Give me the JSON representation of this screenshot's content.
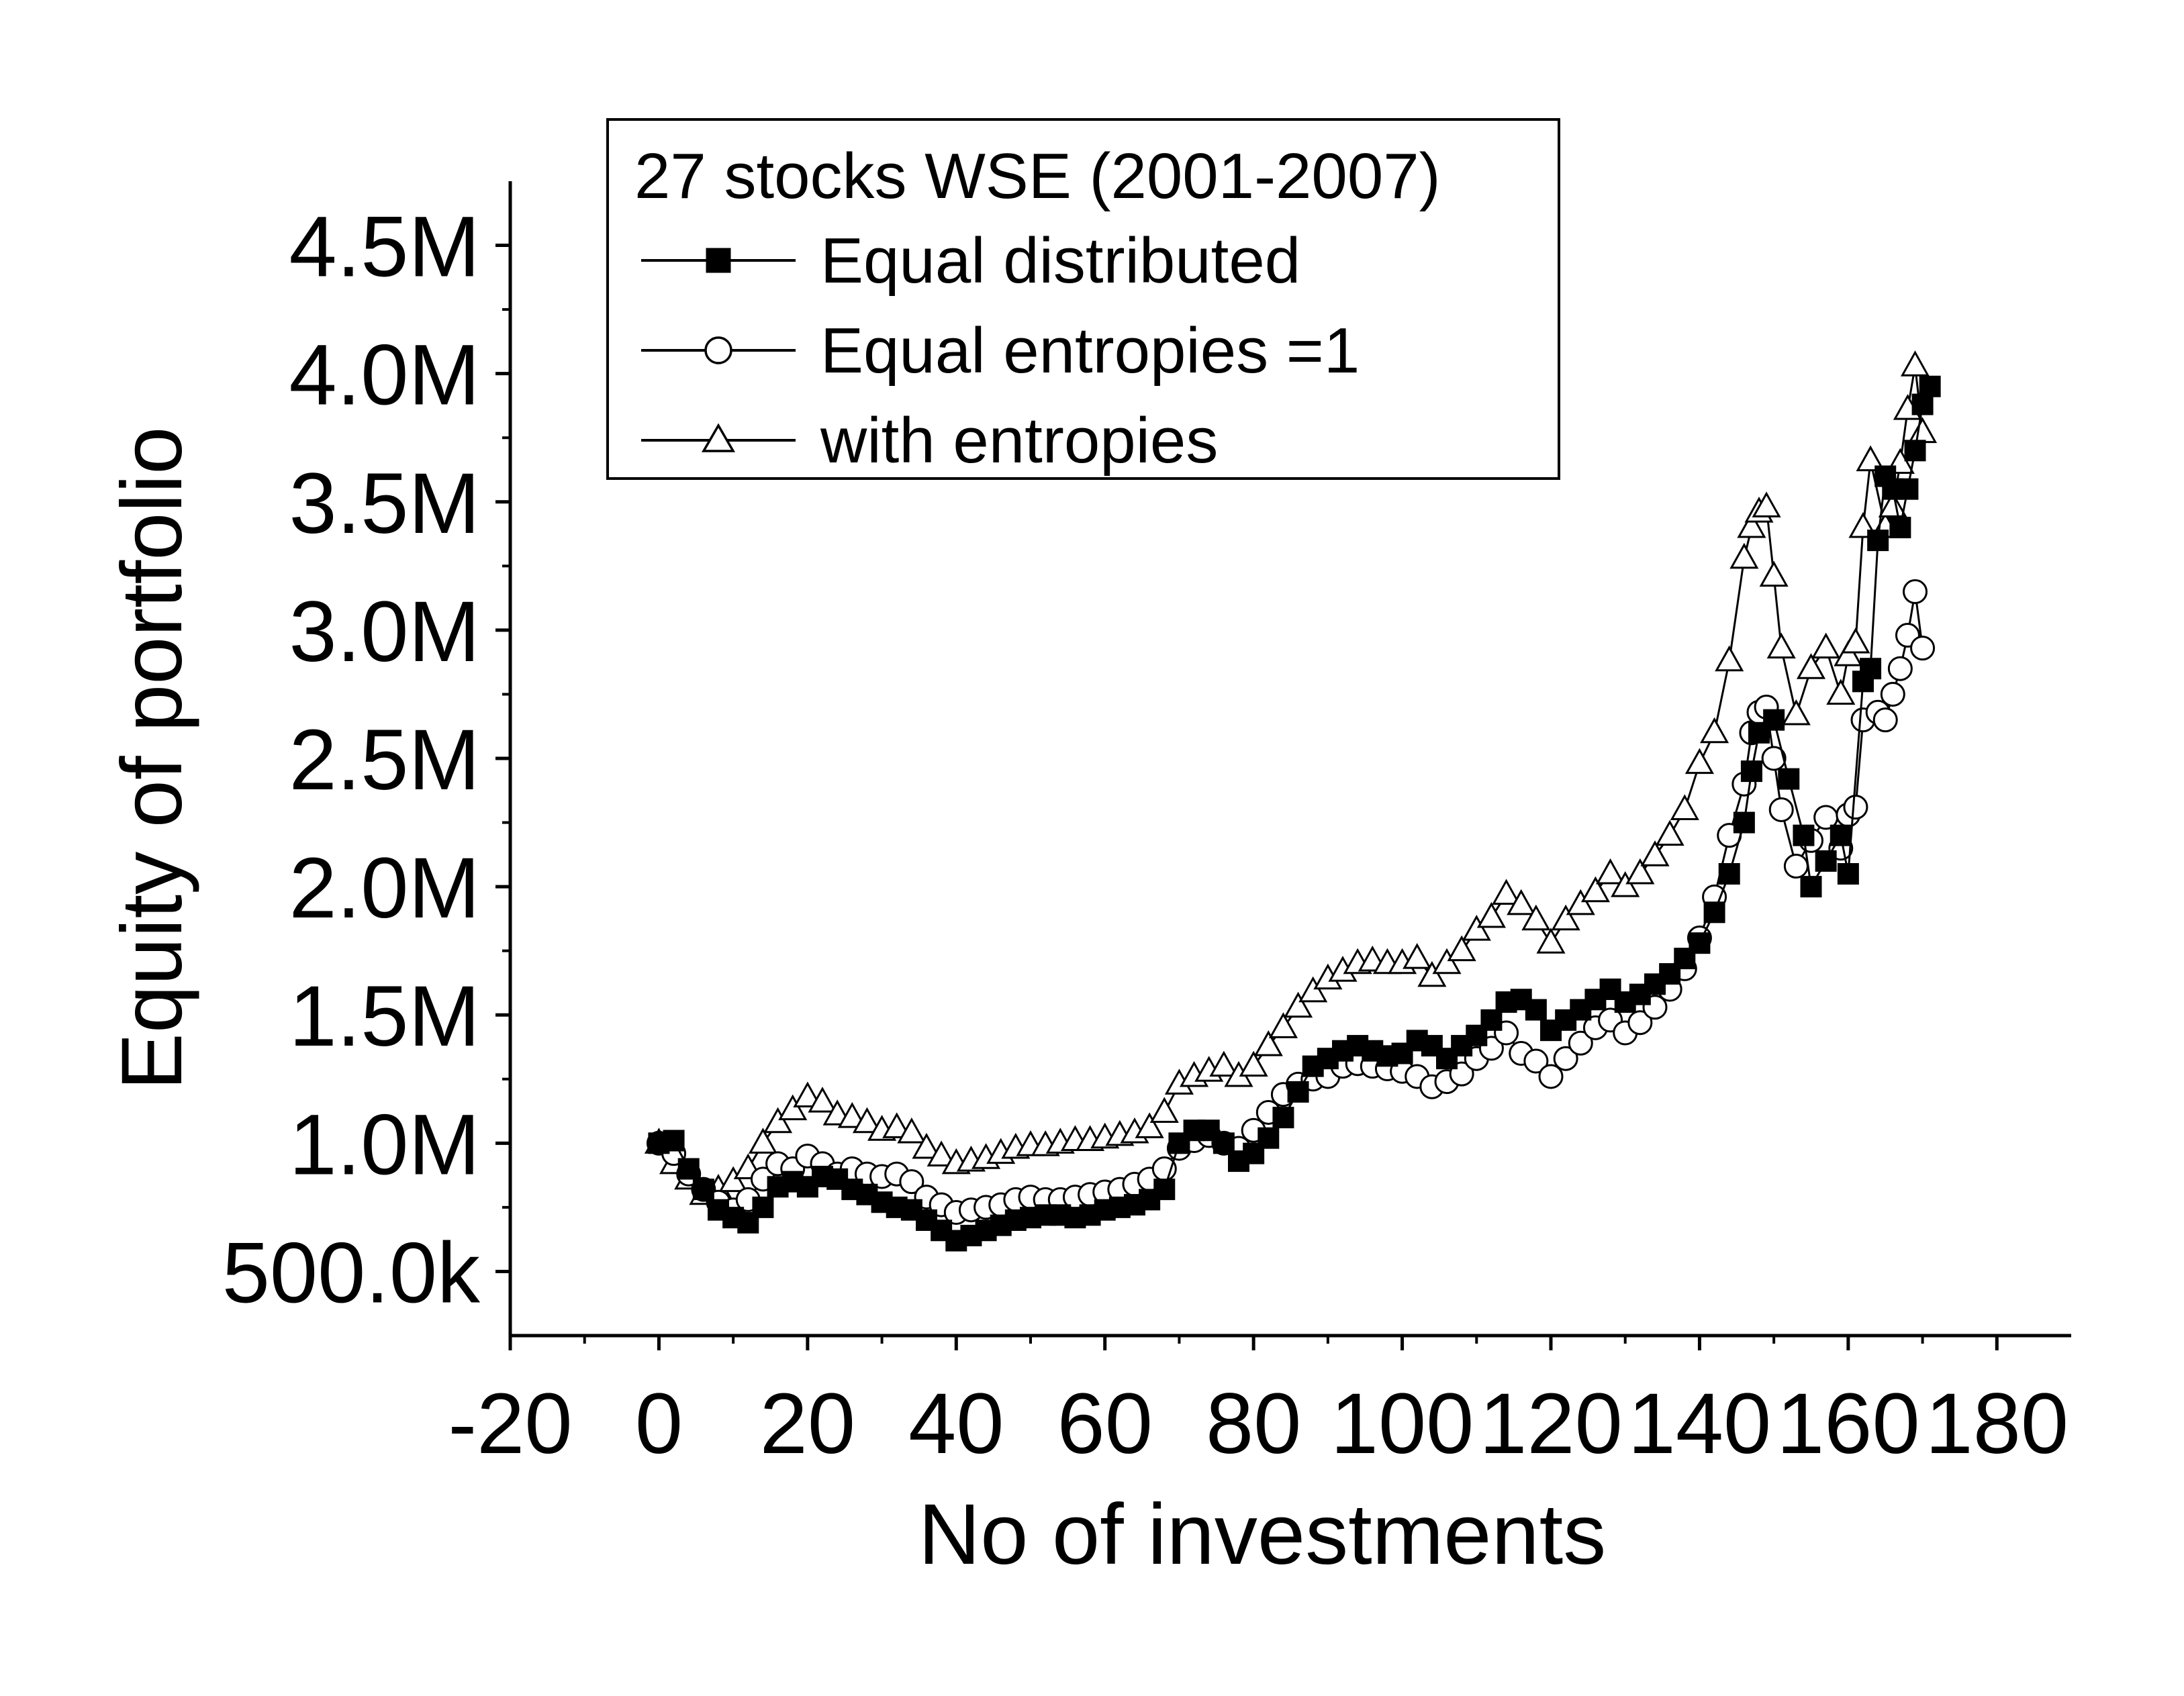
{
  "chart_data": {
    "type": "line",
    "xlabel": "No of investments",
    "ylabel": "Equity of portfolio",
    "xlim": [
      -20,
      190
    ],
    "ylim": [
      250000,
      4750000
    ],
    "x_ticks": [
      -20,
      0,
      20,
      40,
      60,
      80,
      100,
      120,
      140,
      160,
      180
    ],
    "x_tick_labels": [
      "-20",
      "0",
      "20",
      "40",
      "60",
      "80",
      "100",
      "120",
      "140",
      "160",
      "180"
    ],
    "y_ticks": [
      500000,
      1000000,
      1500000,
      2000000,
      2500000,
      3000000,
      3500000,
      4000000,
      4500000
    ],
    "y_tick_labels": [
      "500.0k",
      "1.0M",
      "1.5M",
      "2.0M",
      "2.5M",
      "3.0M",
      "3.5M",
      "4.0M",
      "4.5M"
    ],
    "grid": false,
    "legend": {
      "placement": "top-left",
      "title": "27 stocks WSE (2001-2007)"
    },
    "series": [
      {
        "name": "Equal distributed",
        "marker": "filled-square",
        "color": "#000000",
        "points": [
          [
            0,
            1000000
          ],
          [
            2,
            1010000
          ],
          [
            4,
            900000
          ],
          [
            6,
            820000
          ],
          [
            8,
            740000
          ],
          [
            10,
            710000
          ],
          [
            12,
            690000
          ],
          [
            14,
            750000
          ],
          [
            16,
            830000
          ],
          [
            18,
            850000
          ],
          [
            20,
            830000
          ],
          [
            22,
            870000
          ],
          [
            24,
            860000
          ],
          [
            26,
            820000
          ],
          [
            28,
            800000
          ],
          [
            30,
            770000
          ],
          [
            32,
            750000
          ],
          [
            34,
            740000
          ],
          [
            36,
            700000
          ],
          [
            38,
            660000
          ],
          [
            40,
            620000
          ],
          [
            42,
            640000
          ],
          [
            44,
            660000
          ],
          [
            46,
            680000
          ],
          [
            48,
            700000
          ],
          [
            50,
            710000
          ],
          [
            52,
            720000
          ],
          [
            54,
            720000
          ],
          [
            56,
            710000
          ],
          [
            58,
            720000
          ],
          [
            60,
            740000
          ],
          [
            62,
            750000
          ],
          [
            64,
            760000
          ],
          [
            66,
            780000
          ],
          [
            68,
            820000
          ],
          [
            70,
            1000000
          ],
          [
            72,
            1050000
          ],
          [
            74,
            1050000
          ],
          [
            76,
            1000000
          ],
          [
            78,
            930000
          ],
          [
            80,
            960000
          ],
          [
            82,
            1020000
          ],
          [
            84,
            1100000
          ],
          [
            86,
            1200000
          ],
          [
            88,
            1300000
          ],
          [
            90,
            1330000
          ],
          [
            92,
            1360000
          ],
          [
            94,
            1380000
          ],
          [
            96,
            1360000
          ],
          [
            98,
            1340000
          ],
          [
            100,
            1350000
          ],
          [
            102,
            1400000
          ],
          [
            104,
            1380000
          ],
          [
            106,
            1330000
          ],
          [
            108,
            1380000
          ],
          [
            110,
            1420000
          ],
          [
            112,
            1480000
          ],
          [
            114,
            1550000
          ],
          [
            116,
            1560000
          ],
          [
            118,
            1520000
          ],
          [
            120,
            1440000
          ],
          [
            122,
            1480000
          ],
          [
            124,
            1520000
          ],
          [
            126,
            1560000
          ],
          [
            128,
            1600000
          ],
          [
            130,
            1550000
          ],
          [
            132,
            1580000
          ],
          [
            134,
            1620000
          ],
          [
            136,
            1660000
          ],
          [
            138,
            1720000
          ],
          [
            140,
            1780000
          ],
          [
            142,
            1900000
          ],
          [
            144,
            2050000
          ],
          [
            146,
            2250000
          ],
          [
            147,
            2450000
          ],
          [
            148,
            2600000
          ],
          [
            150,
            2650000
          ],
          [
            152,
            2420000
          ],
          [
            154,
            2200000
          ],
          [
            155,
            2000000
          ],
          [
            157,
            2100000
          ],
          [
            159,
            2200000
          ],
          [
            160,
            2050000
          ],
          [
            162,
            2800000
          ],
          [
            163,
            2850000
          ],
          [
            164,
            3350000
          ],
          [
            165,
            3600000
          ],
          [
            166,
            3550000
          ],
          [
            167,
            3400000
          ],
          [
            168,
            3550000
          ],
          [
            169,
            3700000
          ],
          [
            170,
            3880000
          ],
          [
            171,
            3950000
          ]
        ]
      },
      {
        "name": "Equal entropies =1",
        "marker": "open-circle",
        "color": "#000000",
        "points": [
          [
            0,
            1000000
          ],
          [
            2,
            960000
          ],
          [
            4,
            880000
          ],
          [
            6,
            820000
          ],
          [
            8,
            770000
          ],
          [
            10,
            740000
          ],
          [
            12,
            780000
          ],
          [
            14,
            860000
          ],
          [
            16,
            920000
          ],
          [
            18,
            900000
          ],
          [
            20,
            950000
          ],
          [
            22,
            920000
          ],
          [
            24,
            880000
          ],
          [
            26,
            900000
          ],
          [
            28,
            880000
          ],
          [
            30,
            870000
          ],
          [
            32,
            880000
          ],
          [
            34,
            850000
          ],
          [
            36,
            790000
          ],
          [
            38,
            760000
          ],
          [
            40,
            730000
          ],
          [
            42,
            740000
          ],
          [
            44,
            750000
          ],
          [
            46,
            760000
          ],
          [
            48,
            780000
          ],
          [
            50,
            790000
          ],
          [
            52,
            780000
          ],
          [
            54,
            780000
          ],
          [
            56,
            790000
          ],
          [
            58,
            800000
          ],
          [
            60,
            810000
          ],
          [
            62,
            820000
          ],
          [
            64,
            840000
          ],
          [
            66,
            860000
          ],
          [
            68,
            900000
          ],
          [
            70,
            980000
          ],
          [
            72,
            1010000
          ],
          [
            74,
            1030000
          ],
          [
            76,
            1000000
          ],
          [
            78,
            980000
          ],
          [
            80,
            1050000
          ],
          [
            82,
            1120000
          ],
          [
            84,
            1190000
          ],
          [
            86,
            1230000
          ],
          [
            88,
            1250000
          ],
          [
            90,
            1260000
          ],
          [
            92,
            1300000
          ],
          [
            94,
            1310000
          ],
          [
            96,
            1300000
          ],
          [
            98,
            1290000
          ],
          [
            100,
            1280000
          ],
          [
            102,
            1260000
          ],
          [
            104,
            1220000
          ],
          [
            106,
            1240000
          ],
          [
            108,
            1270000
          ],
          [
            110,
            1330000
          ],
          [
            112,
            1370000
          ],
          [
            114,
            1430000
          ],
          [
            116,
            1350000
          ],
          [
            118,
            1320000
          ],
          [
            120,
            1260000
          ],
          [
            122,
            1330000
          ],
          [
            124,
            1390000
          ],
          [
            126,
            1450000
          ],
          [
            128,
            1480000
          ],
          [
            130,
            1430000
          ],
          [
            132,
            1470000
          ],
          [
            134,
            1530000
          ],
          [
            136,
            1600000
          ],
          [
            138,
            1680000
          ],
          [
            140,
            1800000
          ],
          [
            142,
            1960000
          ],
          [
            144,
            2200000
          ],
          [
            146,
            2400000
          ],
          [
            147,
            2600000
          ],
          [
            148,
            2680000
          ],
          [
            149,
            2700000
          ],
          [
            150,
            2500000
          ],
          [
            151,
            2300000
          ],
          [
            153,
            2080000
          ],
          [
            155,
            2180000
          ],
          [
            157,
            2270000
          ],
          [
            159,
            2150000
          ],
          [
            160,
            2280000
          ],
          [
            161,
            2310000
          ],
          [
            162,
            2650000
          ],
          [
            164,
            2680000
          ],
          [
            165,
            2650000
          ],
          [
            166,
            2750000
          ],
          [
            167,
            2850000
          ],
          [
            168,
            2980000
          ],
          [
            169,
            3150000
          ],
          [
            170,
            2930000
          ]
        ]
      },
      {
        "name": "with entropies",
        "marker": "open-triangle",
        "color": "#000000",
        "points": [
          [
            0,
            1000000
          ],
          [
            2,
            920000
          ],
          [
            4,
            860000
          ],
          [
            6,
            800000
          ],
          [
            8,
            820000
          ],
          [
            10,
            850000
          ],
          [
            12,
            900000
          ],
          [
            14,
            1000000
          ],
          [
            16,
            1080000
          ],
          [
            18,
            1130000
          ],
          [
            20,
            1180000
          ],
          [
            22,
            1160000
          ],
          [
            24,
            1110000
          ],
          [
            26,
            1100000
          ],
          [
            28,
            1080000
          ],
          [
            30,
            1050000
          ],
          [
            32,
            1060000
          ],
          [
            34,
            1040000
          ],
          [
            36,
            980000
          ],
          [
            38,
            950000
          ],
          [
            40,
            920000
          ],
          [
            42,
            930000
          ],
          [
            44,
            940000
          ],
          [
            46,
            960000
          ],
          [
            48,
            980000
          ],
          [
            50,
            990000
          ],
          [
            52,
            990000
          ],
          [
            54,
            1000000
          ],
          [
            56,
            1010000
          ],
          [
            58,
            1010000
          ],
          [
            60,
            1020000
          ],
          [
            62,
            1030000
          ],
          [
            64,
            1040000
          ],
          [
            66,
            1060000
          ],
          [
            68,
            1120000
          ],
          [
            70,
            1230000
          ],
          [
            72,
            1260000
          ],
          [
            74,
            1280000
          ],
          [
            76,
            1300000
          ],
          [
            78,
            1260000
          ],
          [
            80,
            1300000
          ],
          [
            82,
            1380000
          ],
          [
            84,
            1450000
          ],
          [
            86,
            1530000
          ],
          [
            88,
            1590000
          ],
          [
            90,
            1640000
          ],
          [
            92,
            1670000
          ],
          [
            94,
            1700000
          ],
          [
            96,
            1710000
          ],
          [
            98,
            1700000
          ],
          [
            100,
            1700000
          ],
          [
            102,
            1720000
          ],
          [
            104,
            1650000
          ],
          [
            106,
            1700000
          ],
          [
            108,
            1750000
          ],
          [
            110,
            1830000
          ],
          [
            112,
            1880000
          ],
          [
            114,
            1970000
          ],
          [
            116,
            1930000
          ],
          [
            118,
            1870000
          ],
          [
            120,
            1780000
          ],
          [
            122,
            1870000
          ],
          [
            124,
            1930000
          ],
          [
            126,
            1980000
          ],
          [
            128,
            2050000
          ],
          [
            130,
            2000000
          ],
          [
            132,
            2050000
          ],
          [
            134,
            2120000
          ],
          [
            136,
            2200000
          ],
          [
            138,
            2300000
          ],
          [
            140,
            2480000
          ],
          [
            142,
            2600000
          ],
          [
            144,
            2880000
          ],
          [
            146,
            3280000
          ],
          [
            147,
            3400000
          ],
          [
            148,
            3460000
          ],
          [
            149,
            3480000
          ],
          [
            150,
            3210000
          ],
          [
            151,
            2930000
          ],
          [
            153,
            2670000
          ],
          [
            155,
            2850000
          ],
          [
            157,
            2930000
          ],
          [
            159,
            2750000
          ],
          [
            160,
            2900000
          ],
          [
            161,
            2950000
          ],
          [
            162,
            3400000
          ],
          [
            163,
            3660000
          ],
          [
            165,
            3400000
          ],
          [
            166,
            3480000
          ],
          [
            167,
            3650000
          ],
          [
            168,
            3860000
          ],
          [
            169,
            4030000
          ],
          [
            170,
            3770000
          ]
        ]
      }
    ]
  }
}
